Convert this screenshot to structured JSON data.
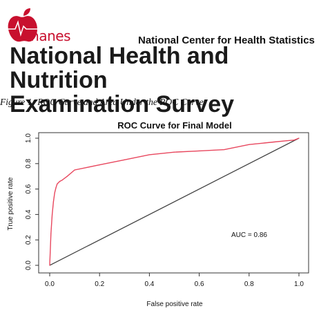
{
  "header": {
    "logo_text": "nhanes",
    "org_name": "National Center for Health Statistics",
    "title_line1": "National Health and Nutrition",
    "title_line2": "Examination Survey"
  },
  "figure": {
    "caption": "Figure 1: ROC Curve and Area Under the ROC Curve"
  },
  "colors": {
    "brand_red": "#c8102e",
    "roc_curve": "#e8475e",
    "diagonal": "#444444"
  },
  "chart_data": {
    "type": "line",
    "title": "ROC Curve for Final Model",
    "xlabel": "False positive rate",
    "ylabel": "True positive rate",
    "xlim": [
      0,
      1
    ],
    "ylim": [
      0,
      1
    ],
    "x_ticks": [
      "0.0",
      "0.2",
      "0.4",
      "0.6",
      "0.8",
      "1.0"
    ],
    "y_ticks": [
      "0.0",
      "0.2",
      "0.4",
      "0.6",
      "0.8",
      "1.0"
    ],
    "annotation": "AUC = 0.86",
    "grid": false,
    "series": [
      {
        "x": [
          0.0,
          0.005,
          0.01,
          0.015,
          0.02,
          0.025,
          0.03,
          0.04,
          0.05,
          0.07,
          0.1,
          0.15,
          0.2,
          0.3,
          0.4,
          0.5,
          0.6,
          0.7,
          0.8,
          0.9,
          0.95,
          0.98,
          1.0
        ],
        "y": [
          0.0,
          0.25,
          0.4,
          0.5,
          0.57,
          0.61,
          0.64,
          0.66,
          0.67,
          0.7,
          0.75,
          0.77,
          0.79,
          0.83,
          0.87,
          0.89,
          0.9,
          0.91,
          0.95,
          0.97,
          0.98,
          0.985,
          1.0
        ]
      },
      {
        "x": [
          0,
          1
        ],
        "y": [
          0,
          1
        ]
      }
    ]
  }
}
